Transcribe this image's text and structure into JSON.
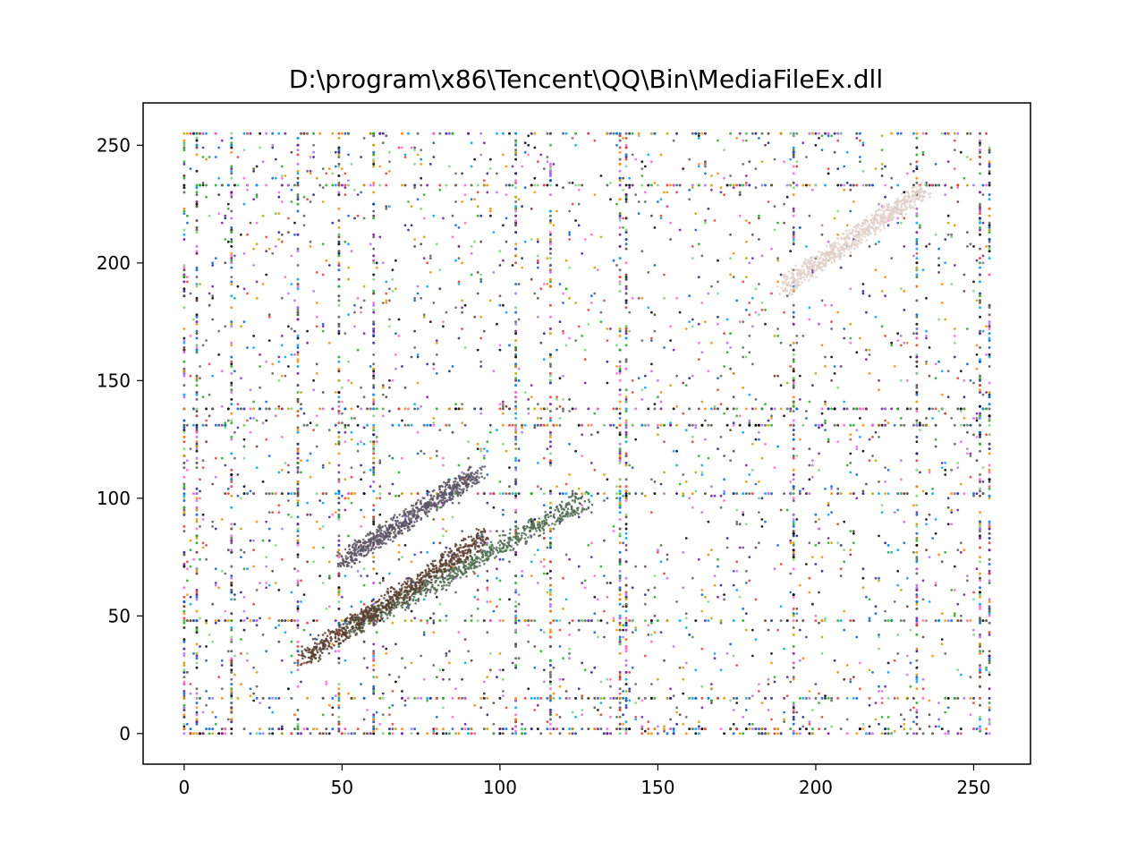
{
  "chart_data": {
    "type": "scatter",
    "title": "D:\\program\\x86\\Tencent\\QQ\\Bin\\MediaFileEx.dll",
    "xlabel": "",
    "ylabel": "",
    "xlim": [
      -13,
      268
    ],
    "ylim": [
      -13,
      268
    ],
    "xticks": [
      0,
      50,
      100,
      150,
      200,
      250
    ],
    "yticks": [
      0,
      50,
      100,
      150,
      200,
      250
    ],
    "xtick_labels": [
      "0",
      "50",
      "100",
      "150",
      "200",
      "250"
    ],
    "ytick_labels": [
      "0",
      "50",
      "100",
      "150",
      "200",
      "250"
    ],
    "grid": false,
    "legend": "none",
    "point_color_mode": "per-point byte-derived RGB colors",
    "value_range": [
      0,
      255
    ],
    "palette": [
      "#000000",
      "#1a237e",
      "#0a5fd0",
      "#00a0ff",
      "#e53935",
      "#ff66cc",
      "#b36bff",
      "#22aa22",
      "#7fd07f",
      "#c8a000",
      "#ff8a00",
      "#6a1b9a",
      "#5d5566",
      "#4e6b4e",
      "#5a3d30"
    ],
    "dense_lines_x": [
      0,
      4,
      15,
      36,
      49,
      60,
      105,
      116,
      138,
      140,
      193,
      232,
      252,
      255
    ],
    "dense_lines_y": [
      0,
      2,
      15,
      48,
      102,
      131,
      138,
      233,
      255
    ],
    "clusters": [
      {
        "name": "",
        "x_range": [
          50,
          93
        ],
        "y_range": [
          73,
          111
        ],
        "color": "#5d5566"
      },
      {
        "name": "",
        "x_range": [
          52,
          128
        ],
        "y_range": [
          44,
          100
        ],
        "color": "#4e6b4e"
      },
      {
        "name": "",
        "x_range": [
          38,
          95
        ],
        "y_range": [
          32,
          84
        ],
        "color": "#5a3d30"
      },
      {
        "name": "",
        "x_range": [
          190,
          235
        ],
        "y_range": [
          190,
          232
        ],
        "color": "#e0d0c8"
      }
    ]
  }
}
